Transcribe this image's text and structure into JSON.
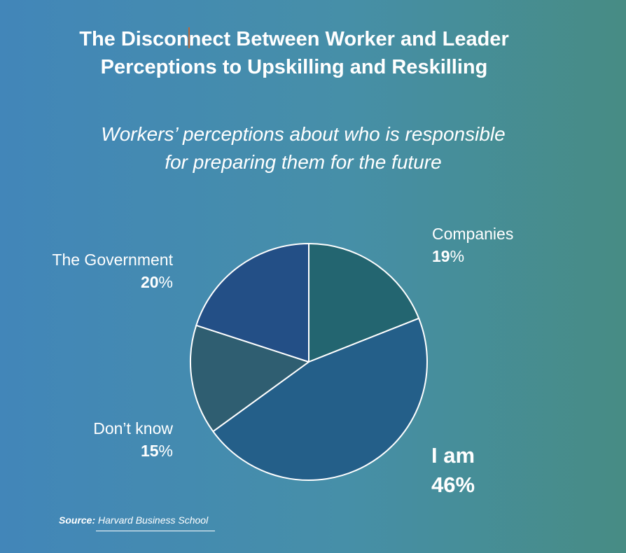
{
  "title": {
    "line1_a": "The Discon",
    "line1_b": "nect Between Worker and Leader",
    "line2": "Perceptions to Upskilling and Reskilling"
  },
  "subtitle": {
    "line1": "Workers’ perceptions about who is responsible",
    "line2": "for preparing them for the future"
  },
  "source": {
    "label": "Source:",
    "name": "Harvard Business School"
  },
  "colors": {
    "companies": "#236570",
    "i_am": "#245f89",
    "dont_know": "#2f5e71",
    "government": "#234f86",
    "slice_border": "#ffffff"
  },
  "chart_data": {
    "type": "pie",
    "title": "Workers’ perceptions about who is responsible for preparing them for the future",
    "unit": "%",
    "slices": [
      {
        "label": "Companies",
        "value": 19,
        "display": "19"
      },
      {
        "label": "I am",
        "value": 46,
        "display": "46"
      },
      {
        "label": "Don’t know",
        "value": 15,
        "display": "15"
      },
      {
        "label": "The Government",
        "value": 20,
        "display": "20"
      }
    ]
  }
}
